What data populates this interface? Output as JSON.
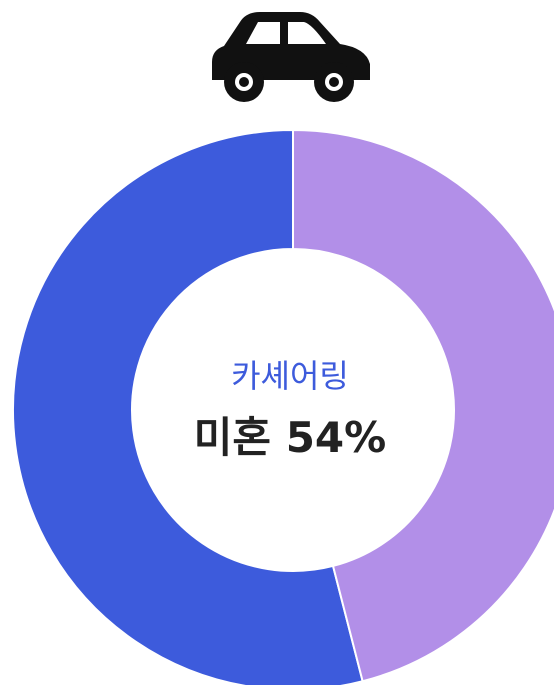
{
  "chart_data": {
    "type": "donut",
    "title": "카셰어링",
    "categories": [
      "미혼",
      null
    ],
    "values": [
      54,
      46
    ],
    "value_labels": [
      "54%",
      null
    ],
    "colors": [
      "#3d5bdc",
      "#b28fe8"
    ]
  }
}
